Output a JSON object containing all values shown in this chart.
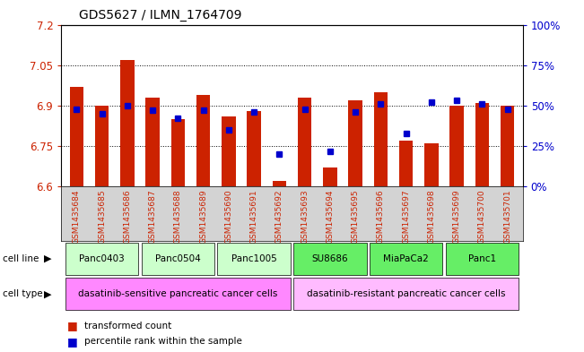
{
  "title": "GDS5627 / ILMN_1764709",
  "samples": [
    "GSM1435684",
    "GSM1435685",
    "GSM1435686",
    "GSM1435687",
    "GSM1435688",
    "GSM1435689",
    "GSM1435690",
    "GSM1435691",
    "GSM1435692",
    "GSM1435693",
    "GSM1435694",
    "GSM1435695",
    "GSM1435696",
    "GSM1435697",
    "GSM1435698",
    "GSM1435699",
    "GSM1435700",
    "GSM1435701"
  ],
  "bar_values": [
    6.97,
    6.9,
    7.07,
    6.93,
    6.85,
    6.94,
    6.86,
    6.88,
    6.62,
    6.93,
    6.67,
    6.92,
    6.95,
    6.77,
    6.76,
    6.9,
    6.91,
    6.9
  ],
  "percentile_values": [
    48,
    45,
    50,
    47,
    42,
    47,
    35,
    46,
    20,
    48,
    22,
    46,
    51,
    33,
    52,
    53,
    51,
    48
  ],
  "bar_color": "#cc2200",
  "dot_color": "#0000cc",
  "ymin": 6.6,
  "ymax": 7.2,
  "yticks": [
    6.6,
    6.75,
    6.9,
    7.05,
    7.2
  ],
  "ytick_labels": [
    "6.6",
    "6.75",
    "6.9",
    "7.05",
    "7.2"
  ],
  "right_yticks": [
    0,
    25,
    50,
    75,
    100
  ],
  "right_ytick_labels": [
    "0%",
    "25%",
    "50%",
    "75%",
    "100%"
  ],
  "cell_lines": [
    {
      "name": "Panc0403",
      "start": 0,
      "end": 2,
      "color": "#ccffcc"
    },
    {
      "name": "Panc0504",
      "start": 3,
      "end": 5,
      "color": "#ccffcc"
    },
    {
      "name": "Panc1005",
      "start": 6,
      "end": 8,
      "color": "#ccffcc"
    },
    {
      "name": "SU8686",
      "start": 9,
      "end": 11,
      "color": "#66ee66"
    },
    {
      "name": "MiaPaCa2",
      "start": 12,
      "end": 14,
      "color": "#66ee66"
    },
    {
      "name": "Panc1",
      "start": 15,
      "end": 17,
      "color": "#66ee66"
    }
  ],
  "cell_types": [
    {
      "name": "dasatinib-sensitive pancreatic cancer cells",
      "start": 0,
      "end": 8,
      "color": "#ff88ff"
    },
    {
      "name": "dasatinib-resistant pancreatic cancer cells",
      "start": 9,
      "end": 17,
      "color": "#ffbbff"
    }
  ],
  "legend_items": [
    {
      "label": "transformed count",
      "color": "#cc2200"
    },
    {
      "label": "percentile rank within the sample",
      "color": "#0000cc"
    }
  ],
  "sample_label_color": "#cc2200",
  "sample_bg_color": "#d3d3d3"
}
